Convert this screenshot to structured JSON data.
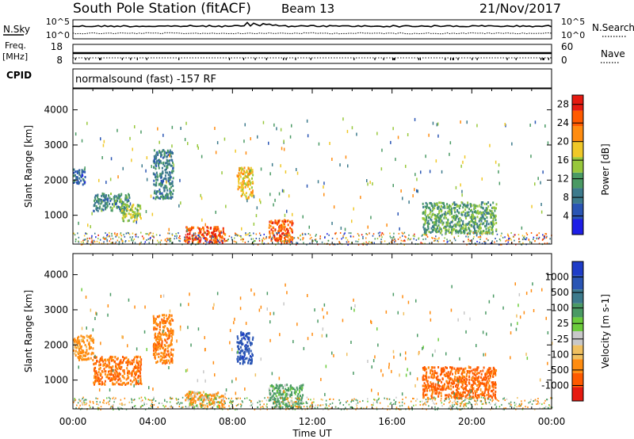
{
  "header": {
    "station": "South Pole Station (fitACF)",
    "beam": "Beam 13",
    "date": "21/Nov/2017"
  },
  "status_panels": {
    "nsky_label": "N.Sky",
    "nsearch_label": "N.Search",
    "freq_label_1": "Freq.",
    "freq_label_2": "[MHz]",
    "nave_label": "Nave",
    "cpid_label": "CPID",
    "noise_ticks_left": [
      "10^5",
      "10^0"
    ],
    "noise_ticks_right": [
      "10^5",
      "10^0"
    ],
    "freq_ticks": [
      "18",
      "8"
    ],
    "nave_ticks": [
      "60",
      "0"
    ],
    "cpid_text": "normalsound (fast) -157 RF"
  },
  "colors": {
    "power_scale": [
      "#1e1ee6",
      "#2a55b4",
      "#3c7a8c",
      "#4a9a64",
      "#98c83c",
      "#f0c828",
      "#ff8c10",
      "#ff5a00",
      "#e61a10"
    ],
    "velocity_scale": [
      "#e61a10",
      "#ff5a00",
      "#ff8c10",
      "#f0c060",
      "#c8c8c8",
      "#6ccc3c",
      "#4a9a64",
      "#3c7a8c",
      "#2a55b4",
      "#1e3cc8"
    ]
  },
  "chart_data": [
    {
      "type": "heatmap",
      "title": "Power",
      "xlabel": "",
      "ylabel": "Slant Range [km]",
      "x_ticks": [
        "00:00",
        "04:00",
        "08:00",
        "12:00",
        "16:00",
        "20:00",
        "00:00"
      ],
      "xlim": [
        0,
        24
      ],
      "y_ticks": [
        "1000",
        "2000",
        "3000",
        "4000"
      ],
      "ylim": [
        180,
        4600
      ],
      "colorbar": {
        "label": "Power [dB]",
        "ticks": [
          "4",
          "8",
          "12",
          "16",
          "20",
          "24",
          "28"
        ],
        "range": [
          0,
          30
        ]
      },
      "features": [
        {
          "t": [
            0.0,
            0.6
          ],
          "r": [
            1900,
            2350
          ],
          "level": 7,
          "note": "patch"
        },
        {
          "t": [
            1.0,
            2.8
          ],
          "r": [
            1150,
            1650
          ],
          "level": 10
        },
        {
          "t": [
            2.4,
            3.4
          ],
          "r": [
            850,
            1350
          ],
          "level": 16
        },
        {
          "t": [
            4.0,
            5.0
          ],
          "r": [
            1500,
            2900
          ],
          "level": 9
        },
        {
          "t": [
            5.6,
            7.6
          ],
          "r": [
            250,
            700
          ],
          "level": 26
        },
        {
          "t": [
            8.2,
            9.0
          ],
          "r": [
            1500,
            2400
          ],
          "level": 19
        },
        {
          "t": [
            9.8,
            11.0
          ],
          "r": [
            250,
            900
          ],
          "level": 25
        },
        {
          "t": [
            17.5,
            21.2
          ],
          "r": [
            500,
            1400
          ],
          "level": 12
        }
      ]
    },
    {
      "type": "heatmap",
      "title": "Velocity",
      "xlabel": "Time UT",
      "ylabel": "Slant Range [km]",
      "x_ticks": [
        "00:00",
        "04:00",
        "08:00",
        "12:00",
        "16:00",
        "20:00",
        "00:00"
      ],
      "xlim": [
        0,
        24
      ],
      "y_ticks": [
        "1000",
        "2000",
        "3000",
        "4000"
      ],
      "ylim": [
        180,
        4600
      ],
      "colorbar": {
        "label": "Velocity [m s-1]",
        "ticks": [
          "1000",
          "500",
          "100",
          "25",
          "-25",
          "-100",
          "-500",
          "-1000"
        ]
      },
      "features": [
        {
          "t": [
            0.0,
            1.0
          ],
          "r": [
            1600,
            2300
          ],
          "level": -150
        },
        {
          "t": [
            1.0,
            3.4
          ],
          "r": [
            900,
            1700
          ],
          "level": -300
        },
        {
          "t": [
            4.0,
            5.0
          ],
          "r": [
            1500,
            2900
          ],
          "level": -250
        },
        {
          "t": [
            5.6,
            7.6
          ],
          "r": [
            250,
            700
          ],
          "level": -60
        },
        {
          "t": [
            8.2,
            9.0
          ],
          "r": [
            1500,
            2400
          ],
          "level": 900
        },
        {
          "t": [
            9.8,
            11.5
          ],
          "r": [
            250,
            900
          ],
          "level": 120
        },
        {
          "t": [
            17.5,
            21.2
          ],
          "r": [
            500,
            1400
          ],
          "level": -350
        }
      ]
    }
  ]
}
